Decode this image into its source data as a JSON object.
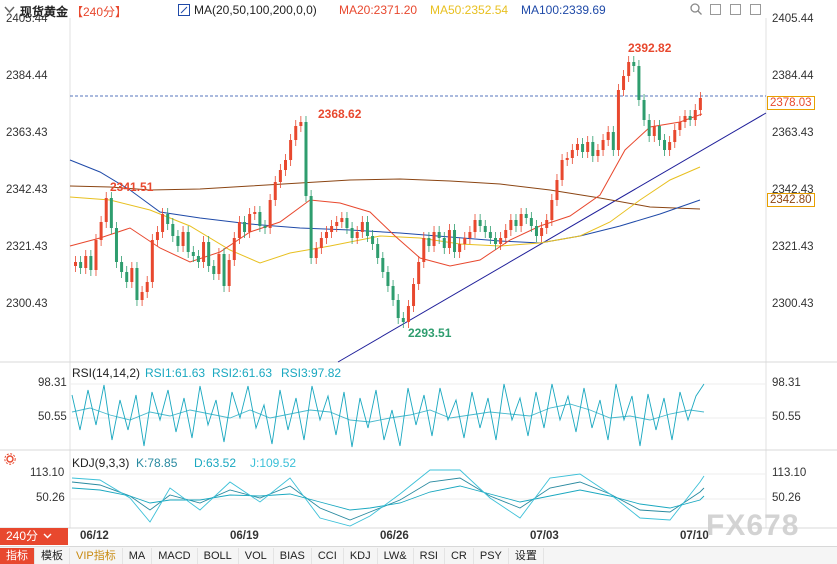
{
  "header": {
    "title": "现货黄金",
    "period_tag": "【240分】",
    "ma_label": "MA(20,50,100,200,0,0)",
    "ma20": "MA20:2371.20",
    "ma50": "MA50:2352.54",
    "ma100": "MA100:2339.69"
  },
  "price_axis_left": [
    "2405.44",
    "2384.44",
    "2363.43",
    "2342.43",
    "2321.43",
    "2300.43"
  ],
  "price_axis_right": [
    "2405.44",
    "2384.44",
    "2363.43",
    "2342.43",
    "2321.43",
    "2300.43"
  ],
  "current_price": "2378.03",
  "ma200_value": "2342.80",
  "annotations": {
    "high1": "2341.51",
    "high2": "2368.62",
    "low": "2293.51",
    "high3": "2392.82"
  },
  "rsi": {
    "label": "RSI(14,14,2)",
    "rsi1": "RSI1:61.63",
    "rsi2": "RSI2:61.63",
    "rsi3": "RSI3:97.82",
    "axis_left": [
      "98.31",
      "50.55"
    ],
    "axis_right": [
      "98.31",
      "50.55"
    ]
  },
  "kdj": {
    "label": "KDJ(9,3,3)",
    "k": "K:78.85",
    "d": "D:63.52",
    "j": "J:109.52",
    "axis_left": [
      "113.10",
      "50.26"
    ],
    "axis_right": [
      "113.10",
      "50.26"
    ]
  },
  "x_labels": [
    "06/12",
    "06/19",
    "06/26",
    "07/03",
    "07/10"
  ],
  "period_button": "240分",
  "toolbar": [
    "指标",
    "模板",
    "VIP指标",
    "MA",
    "MACD",
    "BOLL",
    "VOL",
    "BIAS",
    "CCI",
    "KDJ",
    "LW&",
    "RSI",
    "CR",
    "PSY",
    "设置"
  ],
  "watermark": "FX678",
  "colors": {
    "up": "#e8482e",
    "down": "#2e9d6e",
    "ma20": "#e8482e",
    "ma50": "#e8c020",
    "ma100": "#1f4aa8",
    "ma200": "#8b4513"
  }
}
